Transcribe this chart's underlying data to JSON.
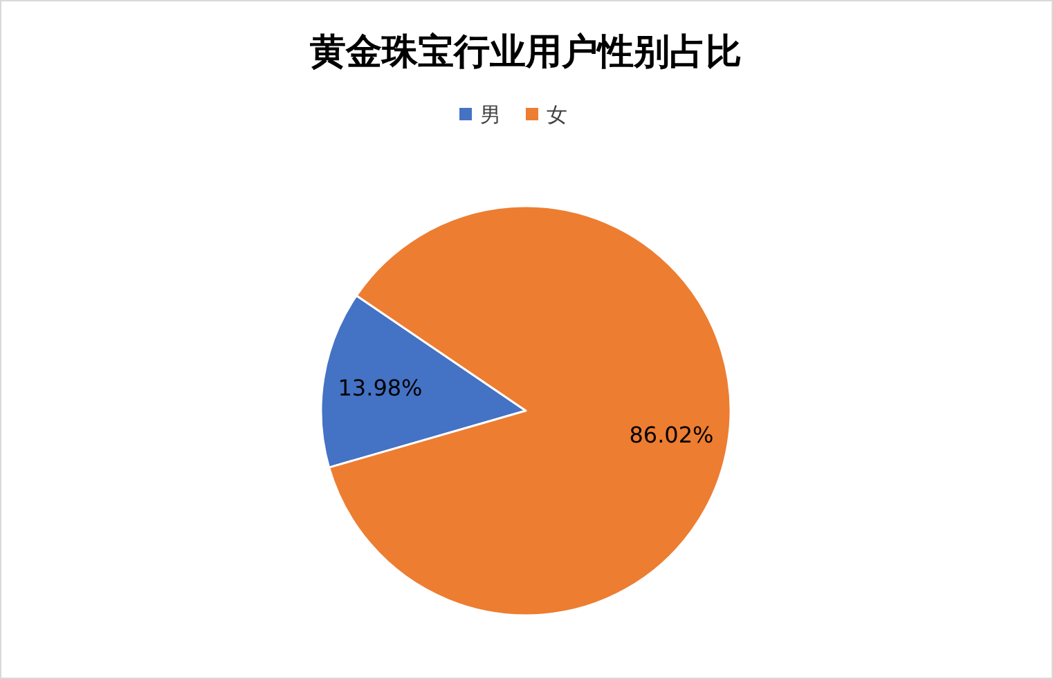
{
  "chart_data": {
    "type": "pie",
    "title": "黄金珠宝行业用户性别占比",
    "categories": [
      "男",
      "女"
    ],
    "values": [
      13.98,
      86.02
    ],
    "colors": [
      "#4472c4",
      "#ed7d31"
    ],
    "value_labels": [
      "13.98%",
      "86.02%"
    ],
    "legend": "top"
  }
}
